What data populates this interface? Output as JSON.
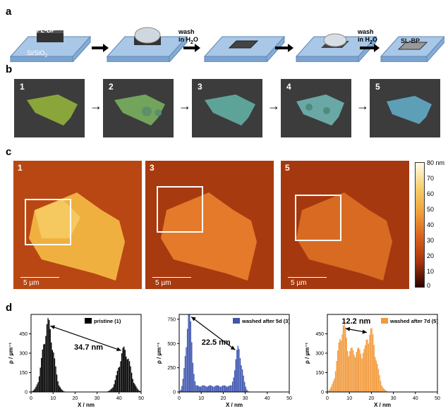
{
  "panels": {
    "a": "a",
    "b": "b",
    "c": "c",
    "d": "d"
  },
  "panel_a": {
    "slab1_label": "FL-BP",
    "substrate_label": "Si/SiO",
    "substrate_sub": "2",
    "wash1": "wash",
    "wash1_in": "in H",
    "wash1_sub": "2",
    "wash1_o": "O",
    "wash2": "wash",
    "wash2_in": "in H",
    "wash2_sub": "2",
    "wash2_o": "O",
    "slab5_label": "SL-BP"
  },
  "panel_b": {
    "images": [
      {
        "num": "1",
        "color": "#7fa23c"
      },
      {
        "num": "2",
        "color": "#6fa060"
      },
      {
        "num": "3",
        "color": "#62a39a"
      },
      {
        "num": "4",
        "color": "#6aa7a7"
      },
      {
        "num": "5",
        "color": "#5d9fb4"
      }
    ]
  },
  "panel_c": {
    "images": [
      {
        "num": "1",
        "scale": "5 µm"
      },
      {
        "num": "3",
        "scale": "5 µm"
      },
      {
        "num": "5",
        "scale": "5 µm"
      }
    ],
    "colorbar_ticks": [
      "80 nm",
      "70",
      "60",
      "50",
      "40",
      "30",
      "20",
      "10",
      "0"
    ]
  },
  "chart_data": [
    {
      "type": "bar",
      "legend": "pristine (1)",
      "color": "#000000",
      "xlabel": "X / nm",
      "ylabel": "ρ / µm⁻¹",
      "xlim": [
        0,
        50
      ],
      "ylim": [
        0,
        600
      ],
      "xticks": [
        "0",
        "10",
        "20",
        "30",
        "40",
        "50"
      ],
      "yticks": [
        "0",
        "150",
        "300",
        "450"
      ],
      "peaks": [
        {
          "x": 7.5,
          "y": 500
        },
        {
          "x": 42.2,
          "y": 310
        }
      ],
      "annotation": "34.7 nm"
    },
    {
      "type": "bar",
      "legend": "washed after 5d (3)",
      "color": "#3f56b0",
      "xlabel": "X / nm",
      "ylabel": "ρ / µm⁻¹",
      "xlim": [
        0,
        50
      ],
      "ylim": [
        0,
        800
      ],
      "xticks": [
        "0",
        "10",
        "20",
        "30",
        "40",
        "50"
      ],
      "yticks": [
        "0",
        "250",
        "500",
        "750"
      ],
      "peaks": [
        {
          "x": 4.2,
          "y": 760
        },
        {
          "x": 26.7,
          "y": 420
        }
      ],
      "annotation": "22.5 nm"
    },
    {
      "type": "bar",
      "legend": "washed after 7d (5)",
      "color": "#f29a3c",
      "xlabel": "X / nm",
      "ylabel": "ρ / µm⁻¹",
      "xlim": [
        0,
        50
      ],
      "ylim": [
        0,
        600
      ],
      "xticks": [
        "0",
        "10",
        "20",
        "30",
        "40",
        "50"
      ],
      "yticks": [
        "0",
        "150",
        "300",
        "450"
      ],
      "peaks": [
        {
          "x": 7.0,
          "y": 480
        },
        {
          "x": 19.2,
          "y": 450
        }
      ],
      "annotation": "12.2 nm"
    }
  ]
}
